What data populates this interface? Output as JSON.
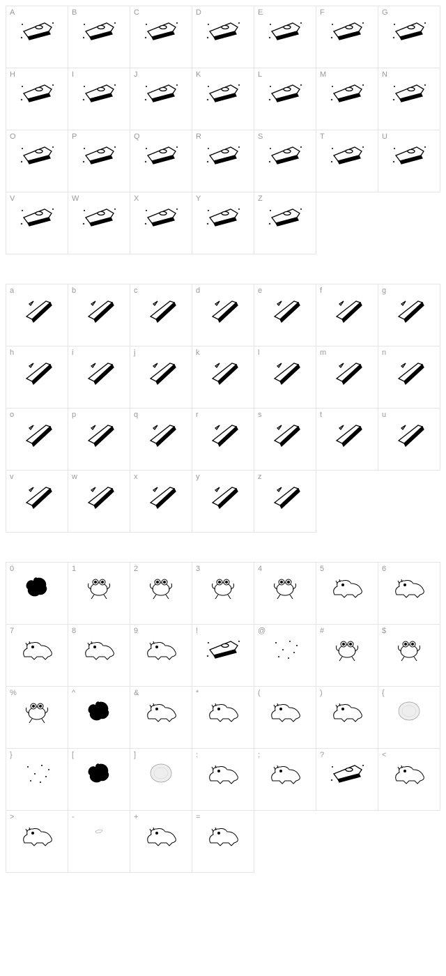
{
  "page": {
    "background_color": "#ffffff",
    "border_color": "#e5e5e5",
    "label_color": "#999999",
    "label_fontsize": 11,
    "glyph_stroke": "#000000",
    "glyph_fill": "#000000",
    "cell_size": 89,
    "columns": 7,
    "section_gap": 42
  },
  "sections": [
    {
      "id": "uppercase",
      "cells": [
        {
          "label": "A",
          "glyph": "ufo"
        },
        {
          "label": "B",
          "glyph": "ufo"
        },
        {
          "label": "C",
          "glyph": "ufo"
        },
        {
          "label": "D",
          "glyph": "ufo"
        },
        {
          "label": "E",
          "glyph": "ufo"
        },
        {
          "label": "F",
          "glyph": "ufo"
        },
        {
          "label": "G",
          "glyph": "ufo"
        },
        {
          "label": "H",
          "glyph": "ufo"
        },
        {
          "label": "I",
          "glyph": "ufo"
        },
        {
          "label": "J",
          "glyph": "ufo"
        },
        {
          "label": "K",
          "glyph": "ufo"
        },
        {
          "label": "L",
          "glyph": "ufo"
        },
        {
          "label": "M",
          "glyph": "ufo"
        },
        {
          "label": "N",
          "glyph": "ufo"
        },
        {
          "label": "O",
          "glyph": "ufo"
        },
        {
          "label": "P",
          "glyph": "ufo"
        },
        {
          "label": "Q",
          "glyph": "ufo"
        },
        {
          "label": "R",
          "glyph": "ufo"
        },
        {
          "label": "S",
          "glyph": "ufo"
        },
        {
          "label": "T",
          "glyph": "ufo"
        },
        {
          "label": "U",
          "glyph": "ufo"
        },
        {
          "label": "V",
          "glyph": "ufo"
        },
        {
          "label": "W",
          "glyph": "ufo"
        },
        {
          "label": "X",
          "glyph": "ufo"
        },
        {
          "label": "Y",
          "glyph": "ufo"
        },
        {
          "label": "Z",
          "glyph": "ufo"
        }
      ]
    },
    {
      "id": "lowercase",
      "cells": [
        {
          "label": "a",
          "glyph": "slash"
        },
        {
          "label": "b",
          "glyph": "slash"
        },
        {
          "label": "c",
          "glyph": "slash"
        },
        {
          "label": "d",
          "glyph": "slash"
        },
        {
          "label": "e",
          "glyph": "slash"
        },
        {
          "label": "f",
          "glyph": "slash"
        },
        {
          "label": "g",
          "glyph": "slash"
        },
        {
          "label": "h",
          "glyph": "slash"
        },
        {
          "label": "i",
          "glyph": "slash"
        },
        {
          "label": "j",
          "glyph": "slash"
        },
        {
          "label": "k",
          "glyph": "slash"
        },
        {
          "label": "l",
          "glyph": "slash"
        },
        {
          "label": "m",
          "glyph": "slash"
        },
        {
          "label": "n",
          "glyph": "slash"
        },
        {
          "label": "o",
          "glyph": "slash"
        },
        {
          "label": "p",
          "glyph": "slash"
        },
        {
          "label": "q",
          "glyph": "slash"
        },
        {
          "label": "r",
          "glyph": "slash"
        },
        {
          "label": "s",
          "glyph": "slash"
        },
        {
          "label": "t",
          "glyph": "slash"
        },
        {
          "label": "u",
          "glyph": "slash"
        },
        {
          "label": "v",
          "glyph": "slash"
        },
        {
          "label": "w",
          "glyph": "slash"
        },
        {
          "label": "x",
          "glyph": "slash"
        },
        {
          "label": "y",
          "glyph": "slash"
        },
        {
          "label": "z",
          "glyph": "slash"
        }
      ]
    },
    {
      "id": "symbols",
      "cells": [
        {
          "label": "0",
          "glyph": "blob"
        },
        {
          "label": "1",
          "glyph": "creature"
        },
        {
          "label": "2",
          "glyph": "creature"
        },
        {
          "label": "3",
          "glyph": "creature"
        },
        {
          "label": "4",
          "glyph": "creature"
        },
        {
          "label": "5",
          "glyph": "dino"
        },
        {
          "label": "6",
          "glyph": "dino"
        },
        {
          "label": "7",
          "glyph": "dino"
        },
        {
          "label": "8",
          "glyph": "dino"
        },
        {
          "label": "9",
          "glyph": "dino"
        },
        {
          "label": "!",
          "glyph": "ufo"
        },
        {
          "label": "@",
          "glyph": "stars"
        },
        {
          "label": "#",
          "glyph": "creature"
        },
        {
          "label": "$",
          "glyph": "creature"
        },
        {
          "label": "%",
          "glyph": "creature"
        },
        {
          "label": "^",
          "glyph": "blob"
        },
        {
          "label": "&",
          "glyph": "dino"
        },
        {
          "label": "*",
          "glyph": "dino"
        },
        {
          "label": "(",
          "glyph": "dino"
        },
        {
          "label": ")",
          "glyph": "dino"
        },
        {
          "label": "{",
          "glyph": "disc"
        },
        {
          "label": "}",
          "glyph": "stars"
        },
        {
          "label": "[",
          "glyph": "blob"
        },
        {
          "label": "]",
          "glyph": "disc"
        },
        {
          "label": ":",
          "glyph": "dino"
        },
        {
          "label": ";",
          "glyph": "dino"
        },
        {
          "label": "?",
          "glyph": "ufo"
        },
        {
          "label": "<",
          "glyph": "dino"
        },
        {
          "label": ">",
          "glyph": "dino"
        },
        {
          "label": "-",
          "glyph": "tiny"
        },
        {
          "label": "+",
          "glyph": "dino"
        },
        {
          "label": "=",
          "glyph": "dino"
        }
      ]
    }
  ],
  "glyph_svgs": {
    "ufo": "<svg width='54' height='36' viewBox='0 0 54 36'><g stroke='#000' fill='none' stroke-width='1.3'><path d='M8 20 L38 8 L48 14 L44 20 L14 28 Z' fill='#fff'/><path d='M14 28 L44 20 L46 24 L16 32 Z' fill='#000'/><ellipse cx='30' cy='14' rx='5' ry='2.5' fill='#fff'/></g><g fill='#000'><circle cx='6' cy='10' r='1'/><circle cx='50' cy='8' r='1'/><path d='M4 30 l2 -2 m0 2 l-2 -2' stroke='#000' stroke-width='0.8'/></g></svg>",
    "slash": "<svg width='50' height='40' viewBox='0 0 50 40'><g stroke='#000' fill='none' stroke-width='1.3'><path d='M10 30 L38 8 L44 10 L18 34 Z' fill='#fff'/><path d='M18 34 L44 10 L46 14 L20 38 Z' fill='#000'/><path d='M14 12 L20 8 L16 14 Z' fill='#fff'/></g></svg>",
    "blob": "<svg width='46' height='38' viewBox='0 0 46 38'><path d='M23 6 C30 4 38 10 36 18 C40 22 34 32 26 30 C20 36 8 30 10 22 C4 18 10 6 18 10 C18 6 22 4 23 6 Z' fill='#000'/></svg>",
    "creature": "<svg width='50' height='40' viewBox='0 0 50 40'><g stroke='#000' fill='none' stroke-width='1'><ellipse cx='25' cy='22' rx='12' ry='9' fill='#fff'/><circle cx='20' cy='12' r='4' fill='#fff'/><circle cx='30' cy='12' r='4' fill='#fff'/><circle cx='20' cy='12' r='1.5' fill='#000'/><circle cx='30' cy='12' r='1.5' fill='#000'/><path d='M18 30 L14 36 M32 30 L36 36' /><path d='M14 22 Q8 20 10 14 M36 22 Q42 20 40 14'/></g></svg>",
    "dino": "<svg width='56' height='38' viewBox='0 0 56 38'><g stroke='#000' fill='none' stroke-width='1'><path d='M10 30 Q6 22 14 18 Q12 10 22 10 Q30 8 34 14 Q44 14 48 22 Q52 28 44 30 L40 34 L36 30 L28 30 L24 34 L20 30 Z' fill='#fff'/><circle cx='22' cy='16' r='1.5' fill='#000'/><path d='M14 14 L12 10 M18 12 L17 8'/></g></svg>",
    "stars": "<svg width='46' height='38' viewBox='0 0 46 38'><g fill='#000'><circle cx='10' cy='10' r='1'/><circle cx='30' cy='8' r='1'/><circle cx='20' cy='20' r='1'/><circle cx='36' cy='24' r='1'/><circle cx='14' cy='30' r='1'/><circle cx='28' cy='32' r='1'/><circle cx='40' cy='14' r='1'/></g></svg>",
    "disc": "<svg width='42' height='38' viewBox='0 0 42 38'><ellipse cx='21' cy='19' rx='15' ry='13' fill='#eee' stroke='#999' stroke-width='0.7'/><ellipse cx='21' cy='19' rx='10' ry='8' fill='none' stroke='#ccc' stroke-width='0.5'/></svg>",
    "tiny": "<svg width='30' height='24' viewBox='0 0 30 24'><g stroke='#aaa' fill='none' stroke-width='0.7'><path d='M10 14 Q14 10 20 12 Q18 16 12 16 Z'/></g></svg>"
  }
}
